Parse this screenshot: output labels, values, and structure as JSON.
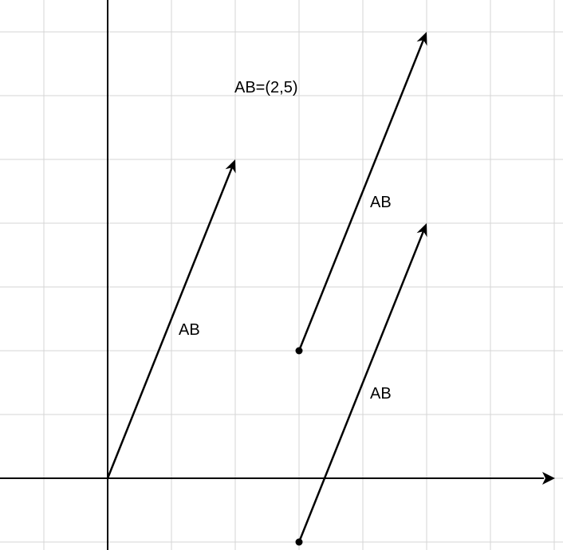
{
  "title": "AB=(2,5)",
  "vector_components": [
    2,
    5
  ],
  "grid": {
    "x_min": -1.7,
    "x_max": 7.1,
    "y_min": -1.1,
    "y_max": 7.5,
    "visible": true
  },
  "vectors": [
    {
      "label": "AB",
      "start": [
        0,
        0
      ],
      "end": [
        2,
        5
      ],
      "start_dot": false
    },
    {
      "label": "AB",
      "start": [
        3,
        2
      ],
      "end": [
        5,
        7
      ],
      "start_dot": true
    },
    {
      "label": "AB",
      "start": [
        3,
        -1
      ],
      "end": [
        5,
        4
      ],
      "start_dot": true
    }
  ]
}
